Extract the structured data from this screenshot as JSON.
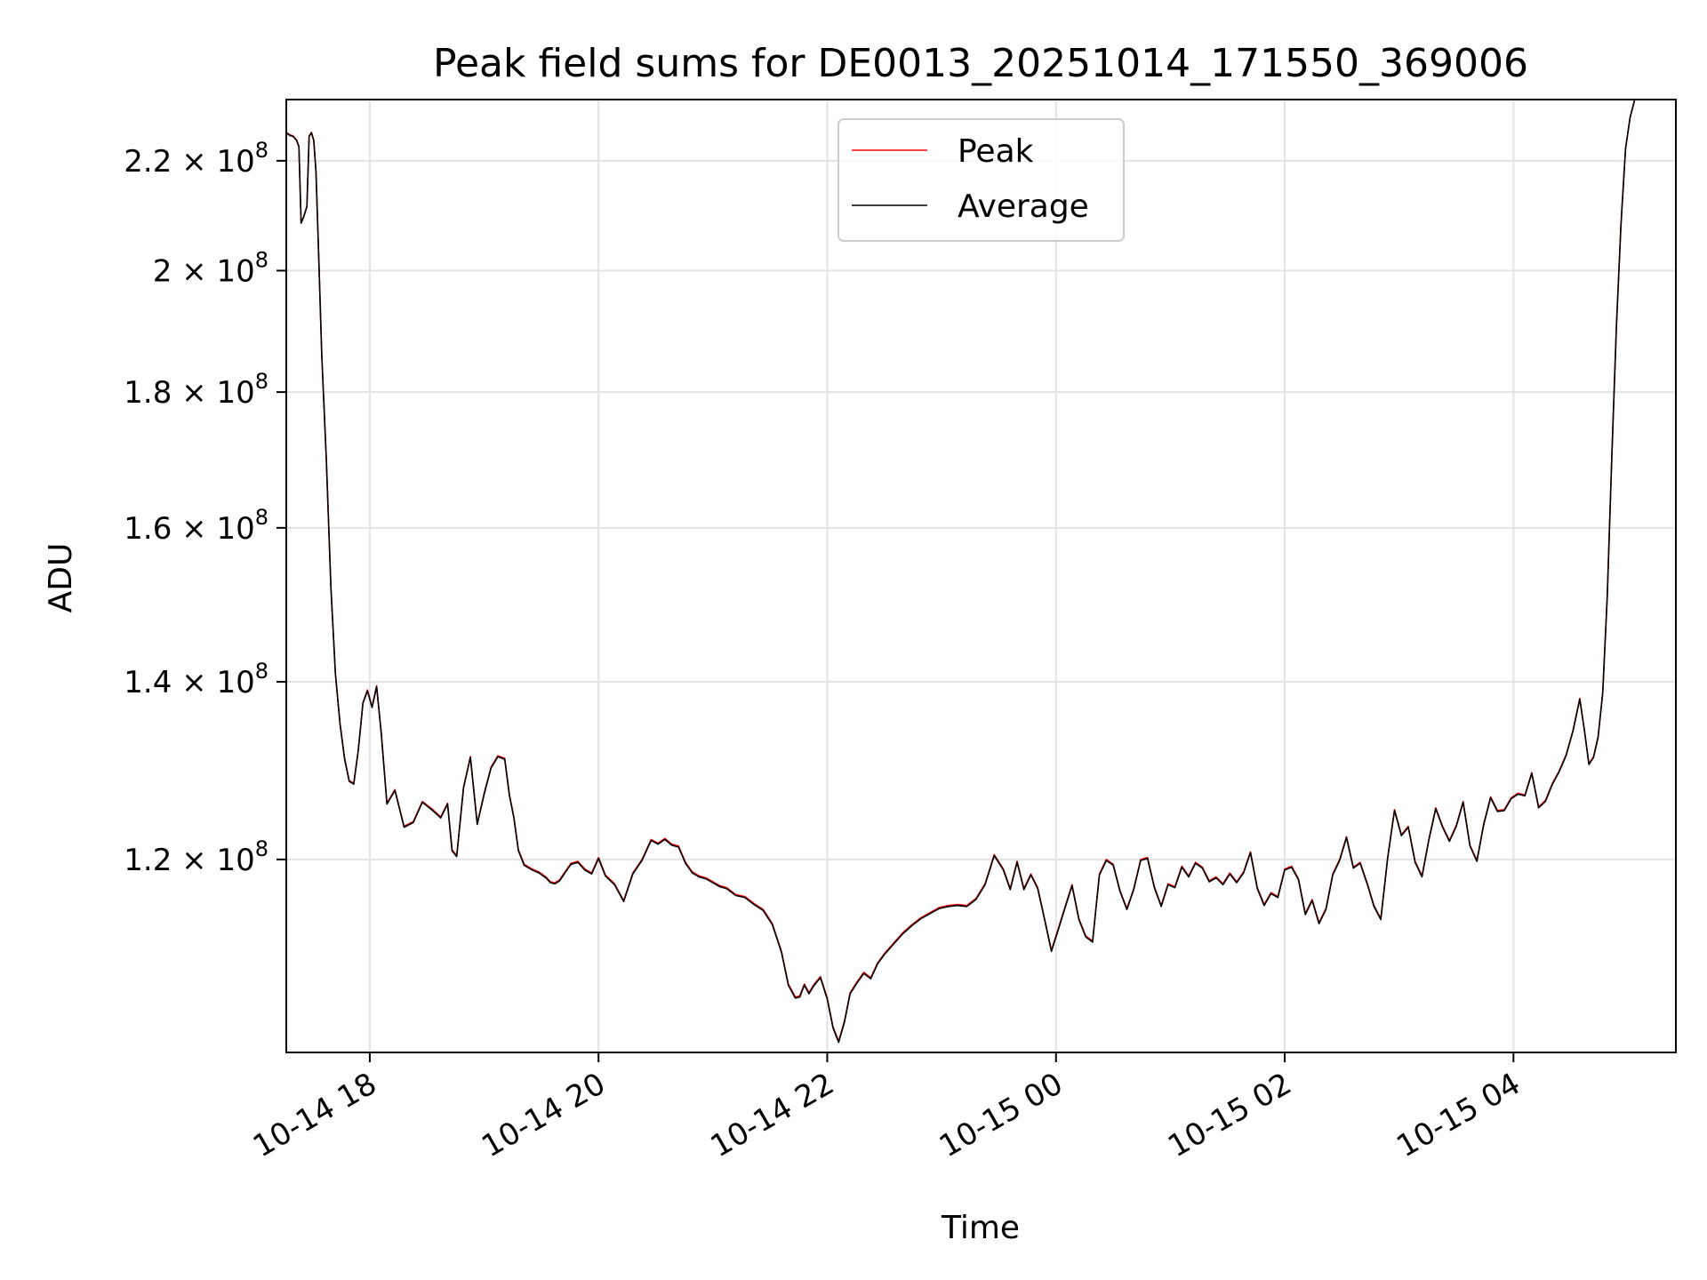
{
  "chart_data": {
    "type": "line",
    "title": "Peak field sums for DE0013_20251014_171550_369006",
    "xlabel": "Time",
    "ylabel": "ADU",
    "yscale": "log",
    "xlim": [
      17.27,
      29.42
    ],
    "ylim": [
      101500000,
      232000000
    ],
    "grid": true,
    "legend_position": "top-center",
    "x_ticks": [
      {
        "value": 18,
        "label": "10-14 18"
      },
      {
        "value": 20,
        "label": "10-14 20"
      },
      {
        "value": 22,
        "label": "10-14 22"
      },
      {
        "value": 24,
        "label": "10-15 00"
      },
      {
        "value": 26,
        "label": "10-15 02"
      },
      {
        "value": 28,
        "label": "10-15 04"
      }
    ],
    "y_ticks": [
      {
        "value": 120000000,
        "mantissa": "1.2",
        "base": "10",
        "exp": "8"
      },
      {
        "value": 140000000,
        "mantissa": "1.4",
        "base": "10",
        "exp": "8"
      },
      {
        "value": 160000000,
        "mantissa": "1.6",
        "base": "10",
        "exp": "8"
      },
      {
        "value": 180000000,
        "mantissa": "1.8",
        "base": "10",
        "exp": "8"
      },
      {
        "value": 200000000,
        "mantissa": "2",
        "base": "10",
        "exp": "8"
      },
      {
        "value": 220000000,
        "mantissa": "2.2",
        "base": "10",
        "exp": "8"
      }
    ],
    "x_hours": [
      17.27,
      17.3,
      17.33,
      17.36,
      17.38,
      17.4,
      17.42,
      17.45,
      17.47,
      17.49,
      17.51,
      17.53,
      17.55,
      17.58,
      17.62,
      17.66,
      17.7,
      17.74,
      17.78,
      17.82,
      17.86,
      17.9,
      17.94,
      17.98,
      18.02,
      18.06,
      18.1,
      18.15,
      18.22,
      18.3,
      18.38,
      18.46,
      18.55,
      18.62,
      18.68,
      18.72,
      18.76,
      18.82,
      18.88,
      18.94,
      19.0,
      19.06,
      19.12,
      19.18,
      19.22,
      19.26,
      19.3,
      19.35,
      19.42,
      19.48,
      19.54,
      19.58,
      19.62,
      19.66,
      19.7,
      19.76,
      19.82,
      19.88,
      19.94,
      20.0,
      20.06,
      20.14,
      20.22,
      20.3,
      20.38,
      20.46,
      20.52,
      20.58,
      20.64,
      20.7,
      20.76,
      20.82,
      20.88,
      20.94,
      21.0,
      21.06,
      21.12,
      21.2,
      21.28,
      21.36,
      21.44,
      21.52,
      21.6,
      21.66,
      21.72,
      21.76,
      21.8,
      21.84,
      21.88,
      21.94,
      22.0,
      22.05,
      22.1,
      22.15,
      22.2,
      22.26,
      22.32,
      22.38,
      22.44,
      22.5,
      22.58,
      22.66,
      22.74,
      22.82,
      22.9,
      22.98,
      23.06,
      23.14,
      23.22,
      23.3,
      23.38,
      23.46,
      23.54,
      23.6,
      23.66,
      23.72,
      23.78,
      23.84,
      23.9,
      23.96,
      24.02,
      24.08,
      24.14,
      24.2,
      24.26,
      24.32,
      24.38,
      24.44,
      24.5,
      24.56,
      24.62,
      24.68,
      24.74,
      24.8,
      24.86,
      24.92,
      24.98,
      25.04,
      25.1,
      25.16,
      25.22,
      25.28,
      25.34,
      25.4,
      25.46,
      25.52,
      25.58,
      25.64,
      25.7,
      25.76,
      25.82,
      25.88,
      25.94,
      26.0,
      26.06,
      26.12,
      26.18,
      26.24,
      26.3,
      26.36,
      26.42,
      26.48,
      26.54,
      26.6,
      26.66,
      26.72,
      26.78,
      26.84,
      26.9,
      26.96,
      27.02,
      27.08,
      27.14,
      27.2,
      27.26,
      27.32,
      27.38,
      27.44,
      27.5,
      27.56,
      27.62,
      27.68,
      27.74,
      27.8,
      27.86,
      27.92,
      27.98,
      28.04,
      28.1,
      28.16,
      28.22,
      28.28,
      28.34,
      28.4,
      28.46,
      28.52,
      28.58,
      28.62,
      28.66,
      28.7,
      28.74,
      28.78,
      28.82,
      28.86,
      28.9,
      28.94,
      28.98,
      29.02,
      29.06,
      29.1,
      29.14,
      29.18,
      29.22,
      29.26,
      29.3,
      29.34,
      29.38,
      29.42
    ],
    "series": [
      {
        "name": "Peak",
        "color": "#ff0000",
        "values": [
          225500000,
          225000000,
          224800000,
          224000000,
          222800000,
          208500000,
          209500000,
          211500000,
          224800000,
          225500000,
          224000000,
          218000000,
          205000000,
          186000000,
          170000000,
          152000000,
          141000000,
          135000000,
          131000000,
          128500000,
          128200000,
          132000000,
          137500000,
          139000000,
          137000000,
          139500000,
          134000000,
          126000000,
          127500000,
          123500000,
          124000000,
          126200000,
          125300000,
          124500000,
          126000000,
          121000000,
          120400000,
          127800000,
          131200000,
          123800000,
          127100000,
          130000000,
          131300000,
          131000000,
          127000000,
          124500000,
          121000000,
          119500000,
          119000000,
          118700000,
          118200000,
          117700000,
          117600000,
          117900000,
          118600000,
          119600000,
          119800000,
          119000000,
          118600000,
          120200000,
          118400000,
          117500000,
          115800000,
          118600000,
          120000000,
          122100000,
          121700000,
          122200000,
          121600000,
          121400000,
          119700000,
          118700000,
          118300000,
          118100000,
          117700000,
          117300000,
          117100000,
          116400000,
          116200000,
          115500000,
          114900000,
          113500000,
          110800000,
          107700000,
          106500000,
          106600000,
          107700000,
          106900000,
          107600000,
          108400000,
          106400000,
          103800000,
          102500000,
          104300000,
          106900000,
          107900000,
          108800000,
          108300000,
          109700000,
          110600000,
          111600000,
          112600000,
          113400000,
          114100000,
          114600000,
          115100000,
          115300000,
          115400000,
          115300000,
          116000000,
          117500000,
          120500000,
          119000000,
          117000000,
          119800000,
          117000000,
          118500000,
          117100000,
          114000000,
          110900000,
          113000000,
          115200000,
          117400000,
          114000000,
          112300000,
          111800000,
          118500000,
          120000000,
          119500000,
          116800000,
          115000000,
          117000000,
          120000000,
          120200000,
          117200000,
          115300000,
          117500000,
          117200000,
          119300000,
          118300000,
          119700000,
          119200000,
          117800000,
          118200000,
          117500000,
          118600000,
          117700000,
          118700000,
          120800000,
          117100000,
          115400000,
          116600000,
          116200000,
          119000000,
          119300000,
          118000000,
          114500000,
          115900000,
          113600000,
          115000000,
          118500000,
          120000000,
          122400000,
          119200000,
          119700000,
          117600000,
          115300000,
          114000000,
          120200000,
          125300000,
          122600000,
          123500000,
          119800000,
          118300000,
          122100000,
          125500000,
          123500000,
          122000000,
          123600000,
          126200000,
          121500000,
          119900000,
          123800000,
          126700000,
          125200000,
          125300000,
          126600000,
          127100000,
          126900000,
          129400000,
          125600000,
          126300000,
          128200000,
          129600000,
          131400000,
          134200000,
          138000000,
          134300000,
          130400000,
          131200000,
          133500000,
          138700000,
          150800000,
          170500000,
          190600000,
          208400000,
          222400000,
          228500000,
          232000000,
          232000000,
          232000000,
          232000000,
          232000000,
          232000000,
          232000000
        ]
      },
      {
        "name": "Average",
        "color": "#000000",
        "values": [
          225400000,
          224900000,
          224700000,
          223900000,
          222700000,
          208400000,
          209400000,
          211400000,
          224700000,
          225400000,
          223900000,
          217900000,
          204900000,
          185900000,
          169900000,
          151900000,
          140900000,
          134900000,
          130900000,
          128400000,
          128100000,
          131900000,
          137400000,
          138900000,
          136900000,
          139400000,
          133900000,
          125900000,
          127400000,
          123400000,
          123900000,
          126100000,
          125200000,
          124400000,
          125900000,
          120900000,
          120300000,
          127700000,
          131100000,
          123700000,
          127000000,
          129900000,
          131200000,
          130900000,
          126900000,
          124400000,
          120900000,
          119400000,
          118900000,
          118600000,
          118100000,
          117600000,
          117500000,
          117800000,
          118500000,
          119500000,
          119700000,
          118900000,
          118500000,
          120100000,
          118300000,
          117400000,
          115700000,
          118500000,
          119900000,
          122000000,
          121600000,
          122100000,
          121500000,
          121300000,
          119600000,
          118600000,
          118200000,
          118000000,
          117600000,
          117200000,
          117000000,
          116300000,
          116100000,
          115400000,
          114800000,
          113400000,
          110700000,
          107600000,
          106400000,
          106500000,
          107600000,
          106800000,
          107500000,
          108300000,
          106300000,
          103700000,
          102400000,
          104200000,
          106800000,
          107800000,
          108700000,
          108200000,
          109600000,
          110500000,
          111500000,
          112500000,
          113300000,
          114000000,
          114500000,
          115000000,
          115200000,
          115300000,
          115200000,
          115900000,
          117400000,
          120400000,
          118900000,
          116900000,
          119700000,
          116900000,
          118400000,
          117000000,
          113900000,
          110800000,
          112900000,
          115100000,
          117300000,
          113900000,
          112200000,
          111700000,
          118400000,
          119900000,
          119400000,
          116700000,
          114900000,
          116900000,
          119900000,
          120100000,
          117100000,
          115200000,
          117400000,
          117100000,
          119200000,
          118200000,
          119600000,
          119100000,
          117700000,
          118100000,
          117400000,
          118500000,
          117600000,
          118600000,
          120700000,
          117000000,
          115300000,
          116500000,
          116100000,
          118900000,
          119200000,
          117900000,
          114400000,
          115800000,
          113500000,
          114900000,
          118400000,
          119900000,
          122300000,
          119100000,
          119600000,
          117500000,
          115200000,
          113900000,
          120100000,
          125200000,
          122500000,
          123400000,
          119700000,
          118200000,
          122000000,
          125400000,
          123400000,
          121900000,
          123500000,
          126100000,
          121400000,
          119800000,
          123700000,
          126600000,
          125100000,
          125200000,
          126500000,
          127000000,
          126800000,
          129300000,
          125500000,
          126200000,
          128100000,
          129500000,
          131300000,
          134100000,
          137900000,
          134200000,
          130300000,
          131100000,
          133400000,
          138600000,
          150700000,
          170400000,
          190500000,
          208300000,
          222300000,
          228400000,
          232000000,
          232000000,
          232000000,
          232000000,
          232000000,
          232000000,
          232000000
        ]
      }
    ]
  }
}
